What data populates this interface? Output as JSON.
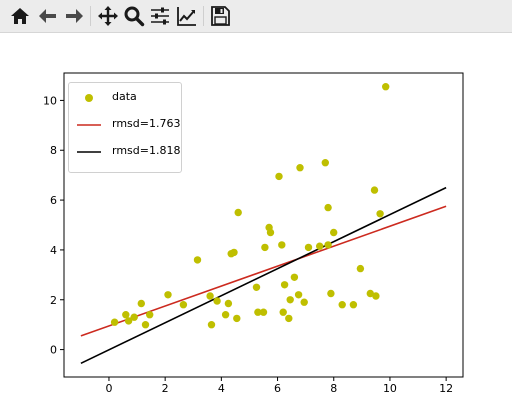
{
  "toolbar": {
    "buttons": [
      {
        "name": "home-button",
        "icon": "home-icon"
      },
      {
        "name": "back-button",
        "icon": "arrow-left-icon"
      },
      {
        "name": "forward-button",
        "icon": "arrow-right-icon"
      },
      {
        "name": "pan-button",
        "icon": "move-icon"
      },
      {
        "name": "zoom-button",
        "icon": "magnifier-icon"
      },
      {
        "name": "configure-subplots-button",
        "icon": "sliders-icon"
      },
      {
        "name": "edit-axis-button",
        "icon": "line-chart-icon"
      },
      {
        "name": "save-button",
        "icon": "floppy-disk-icon"
      }
    ]
  },
  "chart_data": {
    "type": "scatter",
    "title": "",
    "xlabel": "",
    "ylabel": "",
    "xlim": [
      -1.6,
      12.6
    ],
    "ylim": [
      -1.1,
      11.1
    ],
    "xticks": [
      0,
      2,
      4,
      6,
      8,
      10,
      12
    ],
    "yticks": [
      0,
      2,
      4,
      6,
      8,
      10
    ],
    "grid": false,
    "legend_position": "upper-left",
    "colors": {
      "data": "#bfbf00",
      "line1": "#cc2a1f",
      "line2": "#000000"
    },
    "legend": [
      {
        "label": "data",
        "kind": "marker"
      },
      {
        "label": "rmsd=1.763",
        "kind": "line"
      },
      {
        "label": "rmsd=1.818",
        "kind": "line"
      }
    ],
    "series": [
      {
        "name": "data",
        "kind": "scatter",
        "points": [
          [
            0.2,
            1.1
          ],
          [
            0.6,
            1.4
          ],
          [
            0.7,
            1.15
          ],
          [
            0.9,
            1.3
          ],
          [
            1.15,
            1.85
          ],
          [
            1.3,
            1.0
          ],
          [
            1.45,
            1.4
          ],
          [
            2.1,
            2.2
          ],
          [
            2.65,
            1.8
          ],
          [
            3.15,
            3.6
          ],
          [
            3.6,
            2.15
          ],
          [
            3.65,
            1.0
          ],
          [
            3.85,
            1.95
          ],
          [
            4.15,
            1.4
          ],
          [
            4.25,
            1.85
          ],
          [
            4.35,
            3.85
          ],
          [
            4.45,
            3.9
          ],
          [
            4.55,
            1.25
          ],
          [
            4.6,
            5.5
          ],
          [
            5.25,
            2.5
          ],
          [
            5.3,
            1.5
          ],
          [
            5.5,
            1.5
          ],
          [
            5.55,
            4.1
          ],
          [
            5.7,
            4.9
          ],
          [
            5.75,
            4.7
          ],
          [
            6.05,
            6.95
          ],
          [
            6.15,
            4.2
          ],
          [
            6.25,
            2.6
          ],
          [
            6.2,
            1.5
          ],
          [
            6.4,
            1.25
          ],
          [
            6.45,
            2.0
          ],
          [
            6.6,
            2.9
          ],
          [
            6.75,
            2.2
          ],
          [
            6.8,
            7.3
          ],
          [
            6.95,
            1.9
          ],
          [
            7.1,
            4.1
          ],
          [
            7.5,
            4.15
          ],
          [
            7.7,
            7.5
          ],
          [
            7.8,
            5.7
          ],
          [
            7.8,
            4.2
          ],
          [
            7.9,
            2.25
          ],
          [
            8.0,
            4.7
          ],
          [
            8.3,
            1.8
          ],
          [
            8.7,
            1.8
          ],
          [
            8.95,
            3.25
          ],
          [
            9.3,
            2.25
          ],
          [
            9.45,
            6.4
          ],
          [
            9.5,
            2.15
          ],
          [
            9.65,
            5.45
          ],
          [
            9.85,
            10.55
          ]
        ]
      },
      {
        "name": "rmsd=1.763",
        "kind": "line",
        "points": [
          [
            -1,
            0.55
          ],
          [
            12,
            5.75
          ]
        ]
      },
      {
        "name": "rmsd=1.818",
        "kind": "line",
        "points": [
          [
            -1,
            -0.55
          ],
          [
            12,
            6.5
          ]
        ]
      }
    ]
  }
}
